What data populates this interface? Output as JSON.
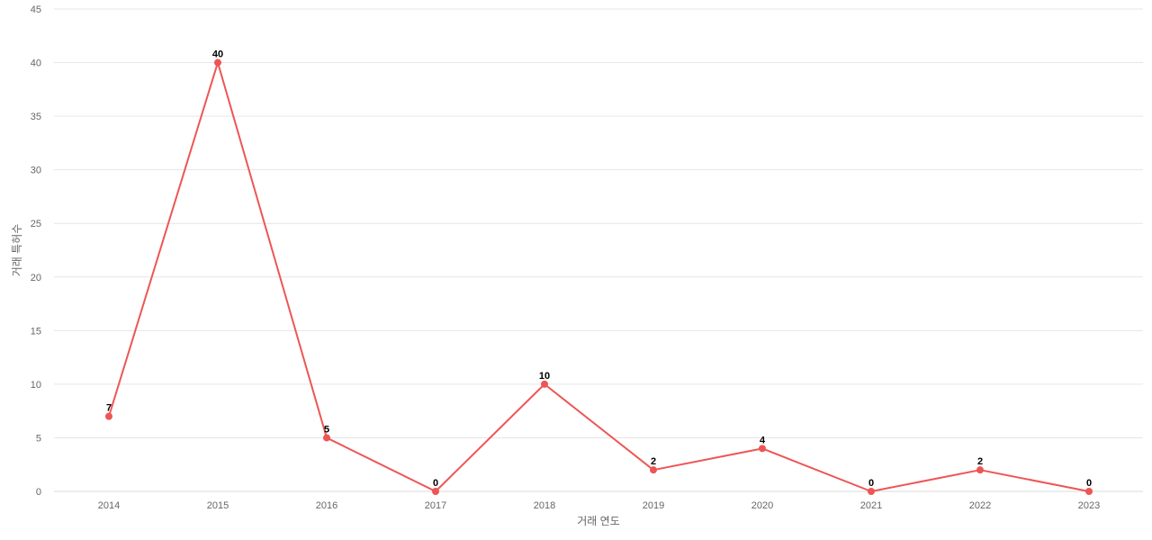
{
  "chart_data": {
    "type": "line",
    "xlabel": "거래 연도",
    "ylabel": "거래 특허수",
    "x": [
      "2014",
      "2015",
      "2016",
      "2017",
      "2018",
      "2019",
      "2020",
      "2021",
      "2022",
      "2023"
    ],
    "series": [
      {
        "values": [
          7,
          40,
          5,
          0,
          10,
          2,
          4,
          0,
          2,
          0
        ],
        "color": "#ee5555"
      }
    ],
    "ylim": [
      0,
      45
    ],
    "yticks": [
      0,
      5,
      10,
      15,
      20,
      25,
      30,
      35,
      40,
      45
    ],
    "grid": true,
    "legend": "none"
  }
}
